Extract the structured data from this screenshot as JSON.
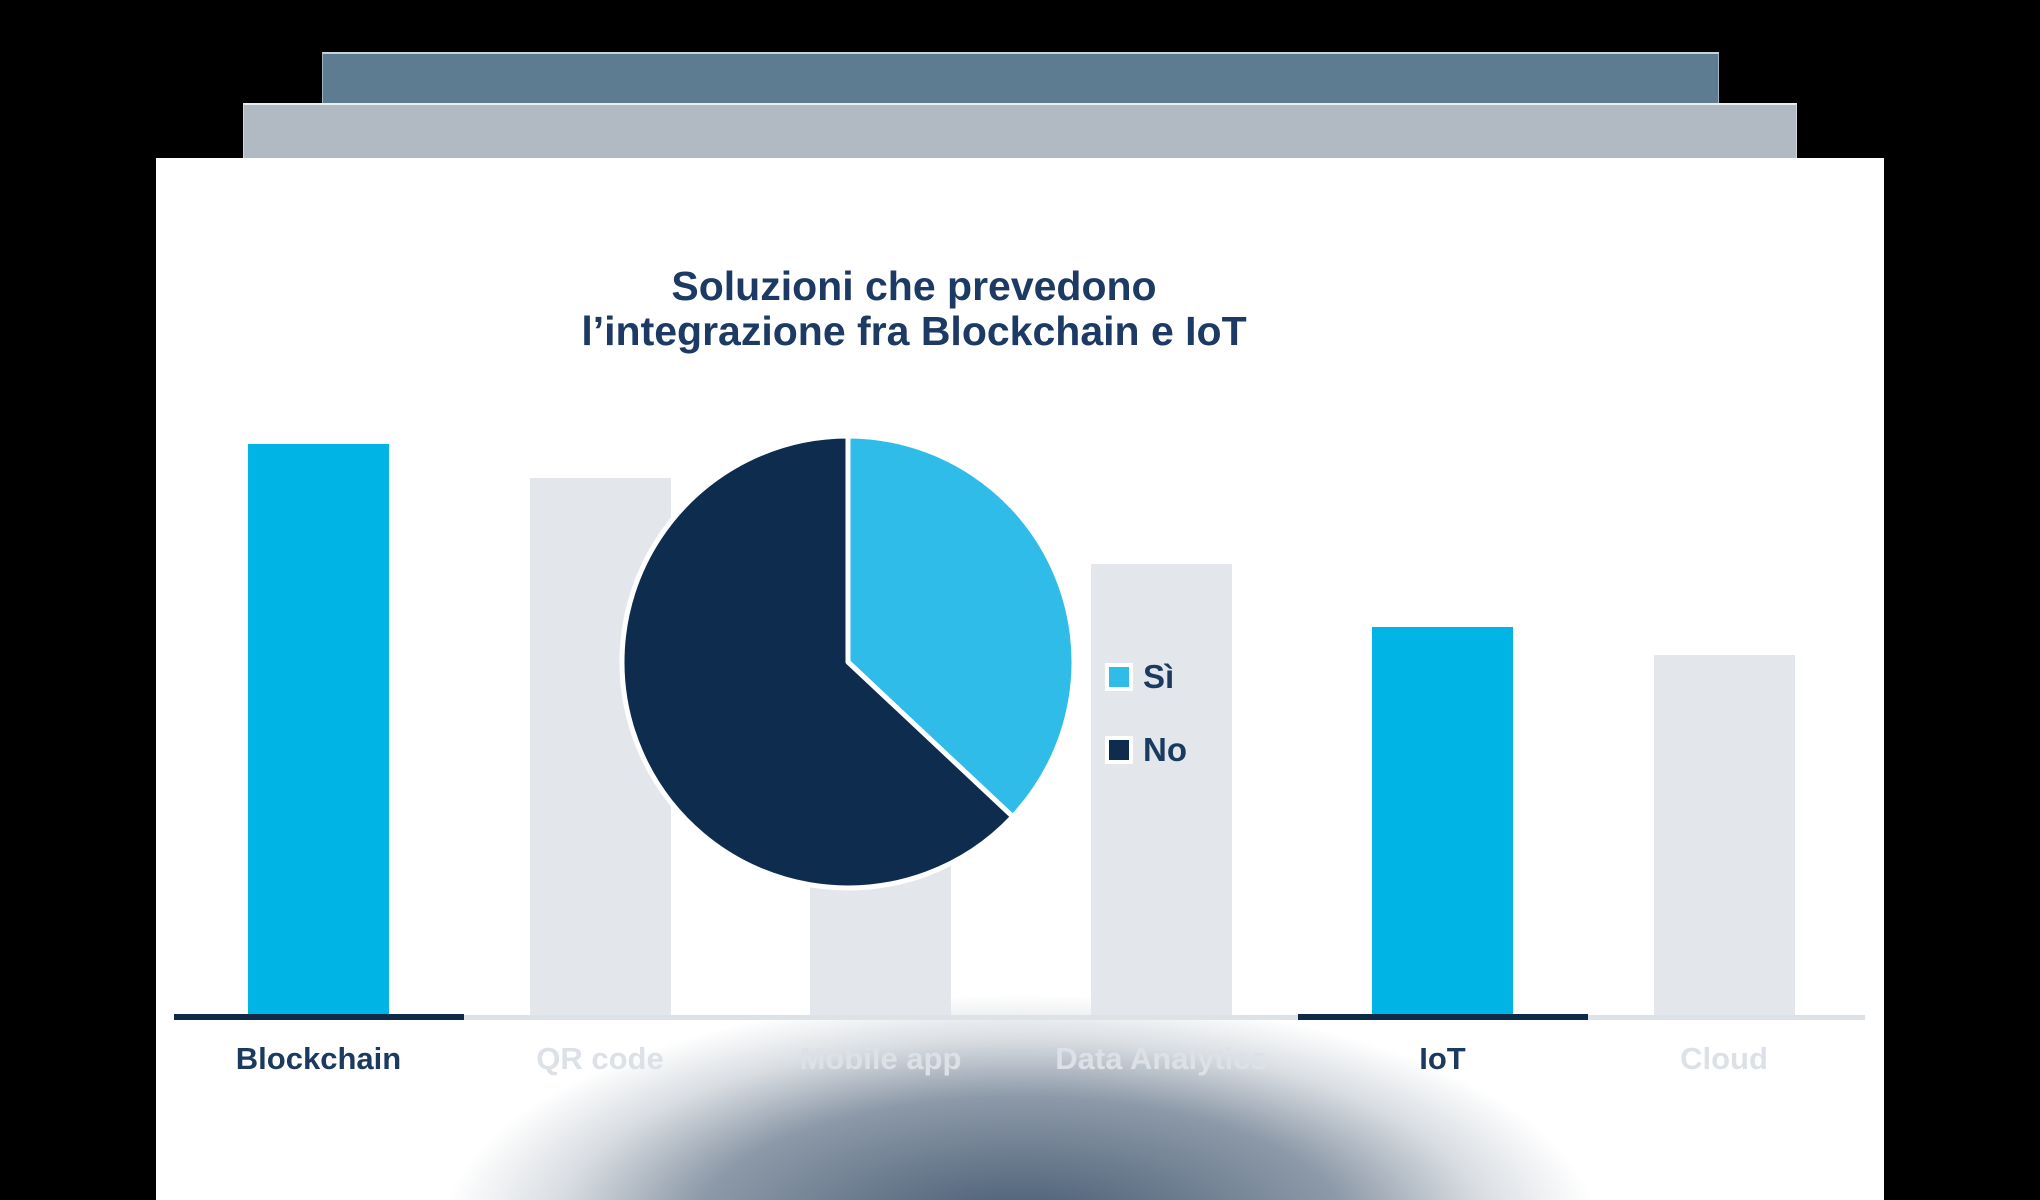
{
  "window": {
    "background": "#000000"
  },
  "deck": {
    "back_bar_color": "#5e7c91",
    "front_bar_color": "#b1b9c2"
  },
  "card": {
    "background": "#ffffff",
    "shadow_color": "#2f4661"
  },
  "title": {
    "line1": "Soluzioni che prevedono",
    "line2": "l’integrazione fra Blockchain e IoT",
    "color": "#1c3a63"
  },
  "legend": {
    "items": [
      {
        "label": "Sì",
        "color": "#2fbce8"
      },
      {
        "label": "No",
        "color": "#0e2c4e"
      }
    ],
    "text_color": "#1b3a5f"
  },
  "chart_data": [
    {
      "type": "bar",
      "title": "Soluzioni che prevedono l’integrazione fra Blockchain e IoT",
      "categories": [
        "Blockchain",
        "QR code",
        "Mobile app",
        "Data Analytics",
        "IoT",
        "Cloud"
      ],
      "values": [
        100,
        94,
        87,
        79,
        68,
        63
      ],
      "units": "relative bar height, tallest bar = 100 (no numeric axis shown; Mobile app partially hidden behind pie, estimated)",
      "bar_colors": [
        "#00b5e6",
        "#e3e7eb",
        "#e3e7eb",
        "#e3e7eb",
        "#00b5e6",
        "#e3e7eb"
      ],
      "label_colors": [
        "#1b3a5f",
        "#dce1e7",
        "#dce1e7",
        "#dce1e7",
        "#1b3a5f",
        "#dce1e7"
      ],
      "highlighted_categories": [
        "Blockchain",
        "IoT"
      ],
      "axis_color": "#dde2e7",
      "highlight_axis_color": "#0e2a49",
      "xlabel": "",
      "ylabel": "",
      "grid": false,
      "legend_position": "none"
    },
    {
      "type": "pie",
      "slices": [
        {
          "label": "Sì",
          "value": 37,
          "color": "#2fbce8"
        },
        {
          "label": "No",
          "value": 63,
          "color": "#0e2c4e"
        }
      ],
      "start_angle_deg": 0,
      "direction": "clockwise",
      "stroke_color": "#ffffff",
      "legend_position": "right"
    }
  ]
}
